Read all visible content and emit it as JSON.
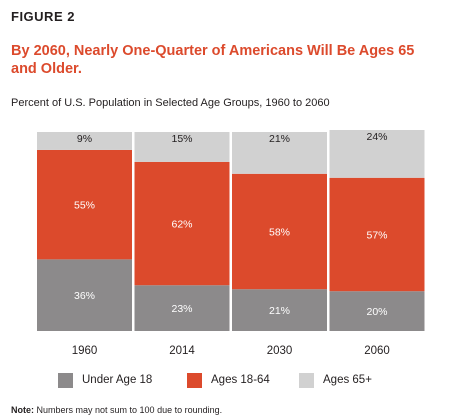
{
  "figure_label": "FIGURE 2",
  "title": "By 2060, Nearly One-Quarter of Americans Will Be Ages 65 and Older.",
  "subtitle": "Percent of U.S. Population in Selected Age Groups, 1960 to 2060",
  "note_label": "Note:",
  "note_text": "Numbers may not sum to 100 due to rounding.",
  "colors": {
    "under_18": "#8c8a8b",
    "ages_18_64": "#dc4a2c",
    "ages_65_plus": "#d1d1d1",
    "title": "#dc4a2c"
  },
  "chart_data": {
    "type": "bar",
    "stacked": true,
    "categories": [
      "1960",
      "2014",
      "2030",
      "2060"
    ],
    "series": [
      {
        "name": "Under Age 18",
        "values": [
          36,
          23,
          21,
          20
        ],
        "labels": [
          "36%",
          "23%",
          "21%",
          "20%"
        ],
        "color": "#8c8a8b"
      },
      {
        "name": "Ages 18-64",
        "values": [
          55,
          62,
          58,
          57
        ],
        "labels": [
          "55%",
          "62%",
          "58%",
          "57%"
        ],
        "color": "#dc4a2c"
      },
      {
        "name": "Ages 65+",
        "values": [
          9,
          15,
          21,
          24
        ],
        "labels": [
          "9%",
          "15%",
          "21%",
          "24%"
        ],
        "color": "#d1d1d1"
      }
    ],
    "title": "Percent of U.S. Population in Selected Age Groups, 1960 to 2060",
    "xlabel": "",
    "ylabel": "",
    "ylim": [
      0,
      100
    ],
    "grid": false,
    "legend": "bottom"
  }
}
